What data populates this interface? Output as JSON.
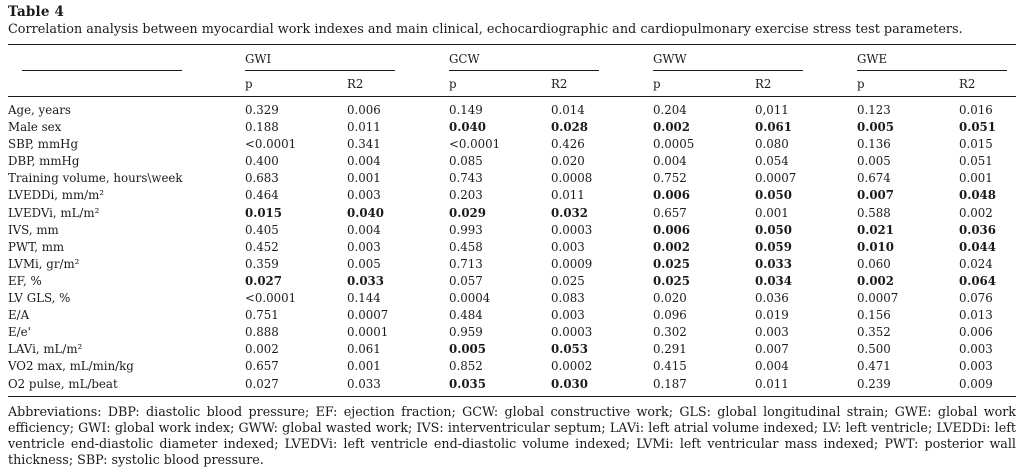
{
  "title": "Table 4",
  "caption": "Correlation analysis between myocardial work indexes and main clinical, echocardiographic and cardiopulmonary exercise stress test parameters.",
  "table": {
    "column_groups": [
      "GWI",
      "GCW",
      "GWW",
      "GWE"
    ],
    "subheaders": [
      "p",
      "R2",
      "p",
      "R2",
      "p",
      "R2",
      "p",
      "R2"
    ],
    "rows": [
      {
        "label": "Age, years",
        "values": [
          "0.329",
          "0.006",
          "0.149",
          "0.014",
          "0.204",
          "0,011",
          "0.123",
          "0.016"
        ],
        "bold": []
      },
      {
        "label": "Male sex",
        "values": [
          "0.188",
          "0.011",
          "0.040",
          "0.028",
          "0.002",
          "0.061",
          "0.005",
          "0.051"
        ],
        "bold": [
          2,
          3,
          4,
          5,
          6,
          7
        ]
      },
      {
        "label": "SBP, mmHg",
        "values": [
          "<0.0001",
          "0.341",
          "<0.0001",
          "0.426",
          "0.0005",
          "0.080",
          "0.136",
          "0.015"
        ],
        "bold": []
      },
      {
        "label": "DBP, mmHg",
        "values": [
          "0.400",
          "0.004",
          "0.085",
          "0.020",
          "0.004",
          "0.054",
          "0.005",
          "0.051"
        ],
        "bold": []
      },
      {
        "label": "Training volume, hours\\week",
        "values": [
          "0.683",
          "0.001",
          "0.743",
          "0.0008",
          "0.752",
          "0.0007",
          "0.674",
          "0.001"
        ],
        "bold": []
      },
      {
        "label": "LVEDDi, mm/m²",
        "values": [
          "0.464",
          "0.003",
          "0.203",
          "0.011",
          "0.006",
          "0.050",
          "0.007",
          "0.048"
        ],
        "bold": [
          4,
          5,
          6,
          7
        ]
      },
      {
        "label": "LVEDVi, mL/m²",
        "values": [
          "0.015",
          "0.040",
          "0.029",
          "0.032",
          "0.657",
          "0.001",
          "0.588",
          "0.002"
        ],
        "bold": [
          0,
          1,
          2,
          3
        ]
      },
      {
        "label": "IVS, mm",
        "values": [
          "0.405",
          "0.004",
          "0.993",
          "0.0003",
          "0.006",
          "0.050",
          "0.021",
          "0.036"
        ],
        "bold": [
          4,
          5,
          6,
          7
        ]
      },
      {
        "label": "PWT, mm",
        "values": [
          "0.452",
          "0.003",
          "0.458",
          "0.003",
          "0.002",
          "0.059",
          "0.010",
          "0.044"
        ],
        "bold": [
          4,
          5,
          6,
          7
        ]
      },
      {
        "label": "LVMi, gr/m²",
        "values": [
          "0.359",
          "0.005",
          "0.713",
          "0.0009",
          "0.025",
          "0.033",
          "0.060",
          "0.024"
        ],
        "bold": [
          4,
          5
        ]
      },
      {
        "label": "EF, %",
        "values": [
          "0.027",
          "0.033",
          "0.057",
          "0.025",
          "0.025",
          "0.034",
          "0.002",
          "0.064"
        ],
        "bold": [
          0,
          1,
          4,
          5,
          6,
          7
        ]
      },
      {
        "label": "LV GLS, %",
        "values": [
          "<0.0001",
          "0.144",
          "0.0004",
          "0.083",
          "0.020",
          "0.036",
          "0.0007",
          "0.076"
        ],
        "bold": []
      },
      {
        "label": "E/A",
        "values": [
          "0.751",
          "0.0007",
          "0.484",
          "0.003",
          "0.096",
          "0.019",
          "0.156",
          "0.013"
        ],
        "bold": []
      },
      {
        "label": "E/e'",
        "values": [
          "0.888",
          "0.0001",
          "0.959",
          "0.0003",
          "0.302",
          "0.003",
          "0.352",
          "0.006"
        ],
        "bold": []
      },
      {
        "label": "LAVi, mL/m²",
        "values": [
          "0.002",
          "0.061",
          "0.005",
          "0.053",
          "0.291",
          "0.007",
          "0.500",
          "0.003"
        ],
        "bold": [
          2,
          3
        ]
      },
      {
        "label": "VO2 max, mL/min/kg",
        "values": [
          "0.657",
          "0.001",
          "0.852",
          "0.0002",
          "0.415",
          "0.004",
          "0.471",
          "0.003"
        ],
        "bold": []
      },
      {
        "label": "O2 pulse, mL/beat",
        "values": [
          "0.027",
          "0.033",
          "0.035",
          "0.030",
          "0.187",
          "0.011",
          "0.239",
          "0.009"
        ],
        "bold": [
          2,
          3
        ]
      }
    ]
  },
  "footnote": "Abbreviations: DBP: diastolic blood pressure; EF: ejection fraction; GCW: global constructive work; GLS: global longitudinal strain; GWE: global work efficiency; GWI: global work index; GWW: global wasted work; IVS: interventricular septum; LAVi: left atrial volume indexed; LV: left ventricle; LVEDDi: left ventricle end-diastolic diameter indexed; LVEDVi: left ventricle end-diastolic volume indexed; LVMi: left ventricular mass indexed; PWT: posterior wall thickness; SBP: systolic blood pressure.",
  "colors": {
    "text": "#1a1a1a",
    "rule": "#1a1a1a",
    "background": "#ffffff"
  }
}
